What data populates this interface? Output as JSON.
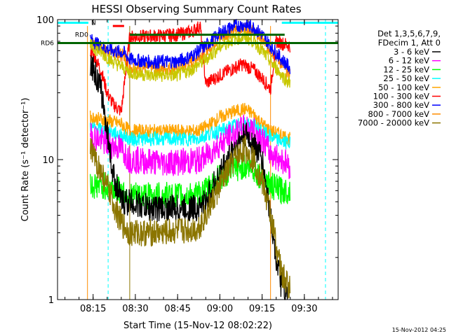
{
  "chart_data": {
    "type": "line",
    "title": "HESSI Observing Summary Count Rates",
    "xlabel": "Start Time (15-Nov-12 08:02:22)",
    "ylabel": "Count Rate (s⁻¹ detector⁻¹)",
    "xscale": "time",
    "yscale": "log",
    "xlim": [
      "08:02:22",
      "09:42:00"
    ],
    "ylim": [
      1,
      100
    ],
    "grid": false,
    "legend_position": "right",
    "legend_header": [
      "Det 1,3,5,6,7,9,",
      "FDecim 1, Att 0"
    ],
    "x_ticks": [
      "08:15",
      "08:30",
      "08:45",
      "09:00",
      "09:15",
      "09:30"
    ],
    "y_ticks": [
      "1",
      "10",
      "100"
    ],
    "timestamp": "15-Nov-2012 04:25",
    "flags": [
      {
        "label": "N",
        "color": "#00ffff",
        "y": 95,
        "start": "08:02:22",
        "end": "08:13:20"
      },
      {
        "label": "",
        "color": "#00ffff",
        "y": 95,
        "start": "09:22:00",
        "end": "09:42:00"
      },
      {
        "label": "",
        "color": "#ff0000",
        "y": 90,
        "start": "08:22:00",
        "end": "08:26:00"
      },
      {
        "label": "RD0",
        "color": "#006400",
        "y": 78,
        "start": "08:28:00",
        "end": "09:23:00"
      },
      {
        "label": "RD6",
        "color": "#006400",
        "y": 68,
        "start": "08:02:22",
        "end": "09:42:00"
      }
    ],
    "gap_markers": [
      "08:20:20",
      "09:37:30"
    ],
    "data_intervals": [
      {
        "start": "08:13:00",
        "end": "08:28:00"
      },
      {
        "start": "08:28:00",
        "end": "09:18:00"
      },
      {
        "start": "09:18:00",
        "end": "09:25:00"
      }
    ],
    "series": [
      {
        "name": "3 - 6 keV",
        "color": "#000000",
        "points": [
          [
            "08:14",
            50
          ],
          [
            "08:16",
            40
          ],
          [
            "08:18",
            30
          ],
          [
            "08:20",
            16
          ],
          [
            "08:22",
            8
          ],
          [
            "08:25",
            5
          ],
          [
            "08:28",
            5
          ],
          [
            "08:35",
            4.5
          ],
          [
            "08:45",
            4.5
          ],
          [
            "08:52",
            4.5
          ],
          [
            "08:55",
            5
          ],
          [
            "09:00",
            8
          ],
          [
            "09:05",
            12
          ],
          [
            "09:09",
            15
          ],
          [
            "09:12",
            13
          ],
          [
            "09:15",
            10
          ],
          [
            "09:18",
            4
          ],
          [
            "09:20",
            2
          ],
          [
            "09:22",
            1.2
          ],
          [
            "09:24",
            1
          ]
        ]
      },
      {
        "name": "6 - 12 keV",
        "color": "#ff00ff",
        "points": [
          [
            "08:14",
            15
          ],
          [
            "08:20",
            13
          ],
          [
            "08:25",
            12
          ],
          [
            "08:28",
            10
          ],
          [
            "08:40",
            9.5
          ],
          [
            "08:52",
            9.8
          ],
          [
            "08:55",
            10.5
          ],
          [
            "09:00",
            13
          ],
          [
            "09:05",
            15
          ],
          [
            "09:09",
            17
          ],
          [
            "09:12",
            16
          ],
          [
            "09:15",
            14
          ],
          [
            "09:18",
            11
          ],
          [
            "09:22",
            10
          ],
          [
            "09:25",
            9
          ]
        ]
      },
      {
        "name": "12 - 25 keV",
        "color": "#00ff00",
        "points": [
          [
            "08:14",
            6.5
          ],
          [
            "08:20",
            6.5
          ],
          [
            "08:25",
            6
          ],
          [
            "08:28",
            5.5
          ],
          [
            "08:40",
            5.5
          ],
          [
            "08:52",
            5.5
          ],
          [
            "08:55",
            6
          ],
          [
            "09:00",
            7.5
          ],
          [
            "09:05",
            8.5
          ],
          [
            "09:09",
            9
          ],
          [
            "09:12",
            8.5
          ],
          [
            "09:15",
            7.5
          ],
          [
            "09:18",
            6.5
          ],
          [
            "09:22",
            6
          ],
          [
            "09:25",
            6
          ]
        ]
      },
      {
        "name": "25 - 50 keV",
        "color": "#00ffff",
        "points": [
          [
            "08:14",
            17
          ],
          [
            "08:20",
            16
          ],
          [
            "08:25",
            15
          ],
          [
            "08:28",
            14
          ],
          [
            "08:40",
            14
          ],
          [
            "08:52",
            14
          ],
          [
            "08:55",
            15
          ],
          [
            "09:00",
            16
          ],
          [
            "09:05",
            17.5
          ],
          [
            "09:09",
            18
          ],
          [
            "09:12",
            17.5
          ],
          [
            "09:15",
            16
          ],
          [
            "09:18",
            14.5
          ],
          [
            "09:22",
            13.5
          ],
          [
            "09:25",
            13
          ]
        ]
      },
      {
        "name": "50 - 100 keV",
        "color": "#ffa500",
        "points": [
          [
            "08:14",
            20
          ],
          [
            "08:20",
            19
          ],
          [
            "08:25",
            18
          ],
          [
            "08:28",
            16
          ],
          [
            "08:40",
            16
          ],
          [
            "08:52",
            16
          ],
          [
            "08:55",
            17
          ],
          [
            "09:00",
            20
          ],
          [
            "09:05",
            22
          ],
          [
            "09:09",
            23
          ],
          [
            "09:12",
            21
          ],
          [
            "09:15",
            18
          ],
          [
            "09:18",
            16
          ],
          [
            "09:22",
            15
          ],
          [
            "09:25",
            14
          ]
        ]
      },
      {
        "name": "100 - 300 keV",
        "color": "#ff0000",
        "points": [
          [
            "08:14",
            60
          ],
          [
            "08:16",
            52
          ],
          [
            "08:18",
            42
          ],
          [
            "08:20",
            30
          ],
          [
            "08:22",
            25
          ],
          [
            "08:25",
            22
          ],
          [
            "08:28",
            75
          ],
          [
            "08:35",
            76
          ],
          [
            "08:45",
            78
          ],
          [
            "08:50",
            82
          ],
          [
            "08:53",
            90
          ],
          [
            "08:55",
            35
          ],
          [
            "09:00",
            40
          ],
          [
            "09:05",
            45
          ],
          [
            "09:08",
            48
          ],
          [
            "09:12",
            44
          ],
          [
            "09:15",
            38
          ],
          [
            "09:18",
            32
          ],
          [
            "09:20",
            70
          ],
          [
            "09:25",
            65
          ]
        ]
      },
      {
        "name": "300 - 800 keV",
        "color": "#0000ff",
        "points": [
          [
            "08:14",
            72
          ],
          [
            "08:18",
            64
          ],
          [
            "08:22",
            60
          ],
          [
            "08:26",
            58
          ],
          [
            "08:28",
            52
          ],
          [
            "08:35",
            50
          ],
          [
            "08:45",
            50
          ],
          [
            "08:50",
            55
          ],
          [
            "08:55",
            65
          ],
          [
            "09:00",
            80
          ],
          [
            "09:05",
            90
          ],
          [
            "09:09",
            92
          ],
          [
            "09:12",
            88
          ],
          [
            "09:15",
            78
          ],
          [
            "09:18",
            65
          ],
          [
            "09:20",
            58
          ],
          [
            "09:22",
            52
          ],
          [
            "09:25",
            45
          ]
        ]
      },
      {
        "name": "800 - 7000 keV",
        "color": "#ff8c00",
        "points": [
          [
            "08:14",
            70
          ],
          [
            "08:18",
            61
          ],
          [
            "08:22",
            58
          ],
          [
            "08:26",
            55
          ],
          [
            "08:28",
            46
          ],
          [
            "08:35",
            45
          ],
          [
            "08:45",
            45
          ],
          [
            "08:50",
            50
          ],
          [
            "08:55",
            60
          ],
          [
            "09:00",
            75
          ],
          [
            "09:05",
            84
          ],
          [
            "09:09",
            87
          ],
          [
            "09:12",
            82
          ],
          [
            "09:15",
            72
          ],
          [
            "09:18",
            60
          ],
          [
            "09:20",
            55
          ],
          [
            "09:22",
            48
          ],
          [
            "09:25",
            40
          ]
        ]
      },
      {
        "name": "7000 - 20000 keV",
        "color": "#8b7500",
        "points": [
          [
            "08:14",
            12
          ],
          [
            "08:18",
            8
          ],
          [
            "08:22",
            5
          ],
          [
            "08:25",
            3.5
          ],
          [
            "08:28",
            3
          ],
          [
            "08:40",
            3
          ],
          [
            "08:52",
            3.2
          ],
          [
            "08:55",
            4
          ],
          [
            "09:00",
            6.5
          ],
          [
            "09:05",
            10
          ],
          [
            "09:09",
            12
          ],
          [
            "09:12",
            10
          ],
          [
            "09:15",
            7
          ],
          [
            "09:18",
            4
          ],
          [
            "09:20",
            2.5
          ],
          [
            "09:22",
            1.5
          ],
          [
            "09:25",
            1.2
          ]
        ]
      },
      {
        "name": "",
        "color": "#c8c800",
        "points": [
          [
            "08:14",
            65
          ],
          [
            "08:18",
            58
          ],
          [
            "08:22",
            50
          ],
          [
            "08:26",
            45
          ],
          [
            "08:28",
            42
          ],
          [
            "08:35",
            40
          ],
          [
            "08:45",
            40
          ],
          [
            "08:50",
            44
          ],
          [
            "08:55",
            52
          ],
          [
            "09:00",
            64
          ],
          [
            "09:05",
            73
          ],
          [
            "09:09",
            75
          ],
          [
            "09:12",
            70
          ],
          [
            "09:15",
            60
          ],
          [
            "09:18",
            50
          ],
          [
            "09:20",
            45
          ],
          [
            "09:22",
            40
          ],
          [
            "09:25",
            35
          ]
        ]
      }
    ]
  }
}
